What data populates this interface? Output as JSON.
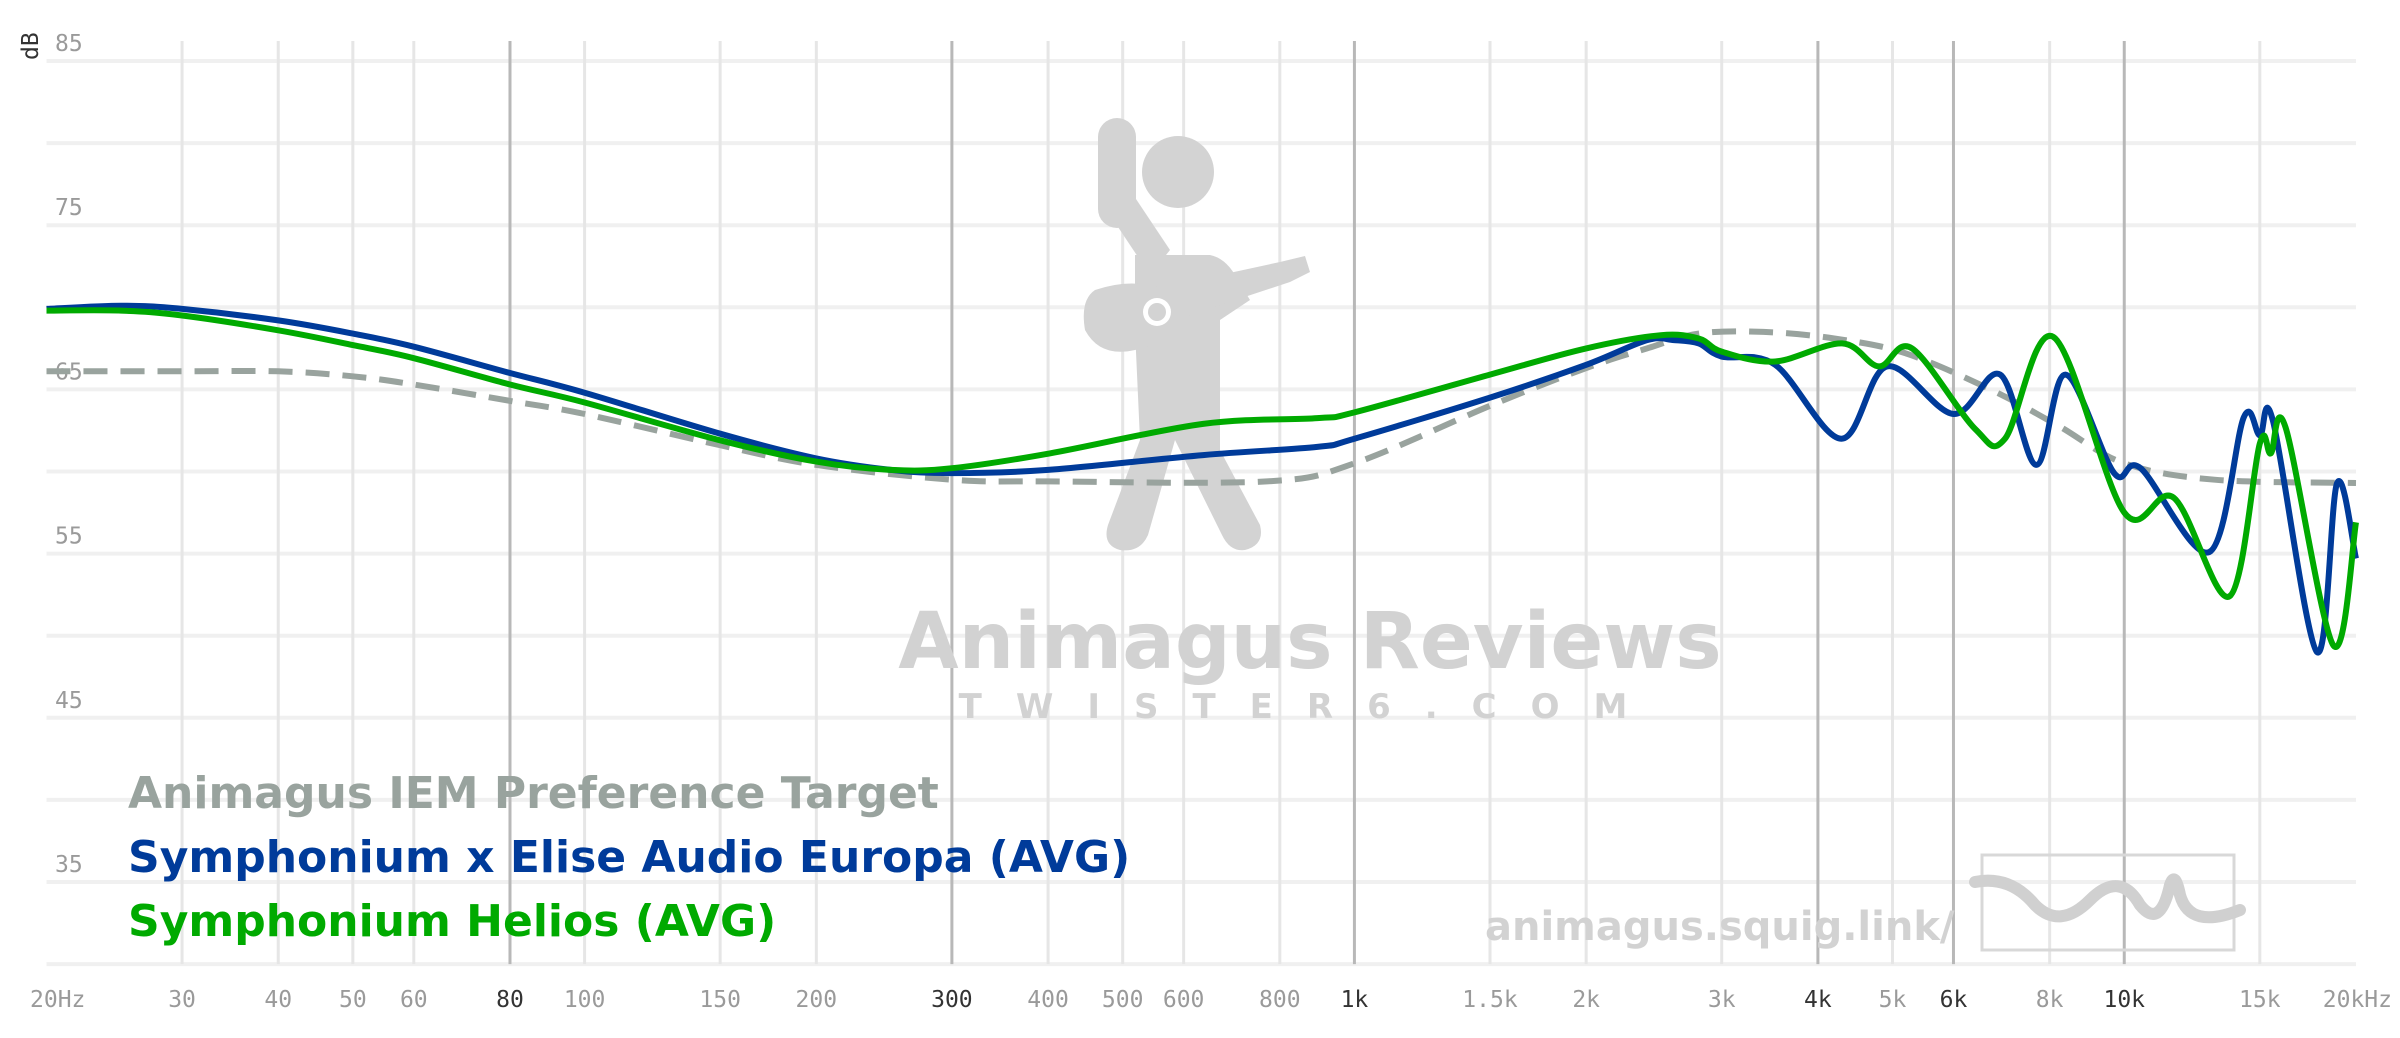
{
  "chart_data": {
    "type": "line",
    "title": "",
    "xlabel": "",
    "ylabel": "dB",
    "xscale": "log",
    "xlim": [
      20,
      20000
    ],
    "ylim": [
      30,
      85
    ],
    "grid": true,
    "legend_position": "bottom-left",
    "x_ticks": [
      {
        "value": 20,
        "label": "20Hz",
        "major": false
      },
      {
        "value": 30,
        "label": "30",
        "major": false
      },
      {
        "value": 40,
        "label": "40",
        "major": false
      },
      {
        "value": 50,
        "label": "50",
        "major": false
      },
      {
        "value": 60,
        "label": "60",
        "major": false
      },
      {
        "value": 80,
        "label": "80",
        "major": true
      },
      {
        "value": 100,
        "label": "100",
        "major": false
      },
      {
        "value": 150,
        "label": "150",
        "major": false
      },
      {
        "value": 200,
        "label": "200",
        "major": false
      },
      {
        "value": 300,
        "label": "300",
        "major": true
      },
      {
        "value": 400,
        "label": "400",
        "major": false
      },
      {
        "value": 500,
        "label": "500",
        "major": false
      },
      {
        "value": 600,
        "label": "600",
        "major": false
      },
      {
        "value": 800,
        "label": "800",
        "major": false
      },
      {
        "value": 1000,
        "label": "1k",
        "major": true
      },
      {
        "value": 1500,
        "label": "1.5k",
        "major": false
      },
      {
        "value": 2000,
        "label": "2k",
        "major": false
      },
      {
        "value": 3000,
        "label": "3k",
        "major": false
      },
      {
        "value": 4000,
        "label": "4k",
        "major": true
      },
      {
        "value": 5000,
        "label": "5k",
        "major": false
      },
      {
        "value": 6000,
        "label": "6k",
        "major": true
      },
      {
        "value": 8000,
        "label": "8k",
        "major": false
      },
      {
        "value": 10000,
        "label": "10k",
        "major": true
      },
      {
        "value": 15000,
        "label": "15k",
        "major": false
      },
      {
        "value": 20000,
        "label": "20kHz",
        "major": false
      }
    ],
    "y_ticks": [
      {
        "value": 85,
        "label": "85"
      },
      {
        "value": 75,
        "label": "75"
      },
      {
        "value": 65,
        "label": "65"
      },
      {
        "value": 55,
        "label": "55"
      },
      {
        "value": 45,
        "label": "45"
      },
      {
        "value": 35,
        "label": "35"
      }
    ],
    "series": [
      {
        "name": "Animagus IEM Preference Target",
        "color": "#99a39e",
        "dashed": true,
        "x": [
          20,
          30,
          40,
          50,
          60,
          80,
          100,
          150,
          200,
          300,
          400,
          770,
          1000,
          1500,
          2000,
          2400,
          2800,
          3400,
          4200,
          5200,
          6700,
          8200,
          10000,
          13100,
          20000
        ],
        "y": [
          66.1,
          66.1,
          66.1,
          65.8,
          65.3,
          64.3,
          63.5,
          61.6,
          60.4,
          59.5,
          59.4,
          59.4,
          60.5,
          64.0,
          66.3,
          67.5,
          68.4,
          68.5,
          68.1,
          67.2,
          65.0,
          62.8,
          60.5,
          59.5,
          59.3
        ]
      },
      {
        "name": "Symphonium x Elise Audio Europa (AVG)",
        "color": "#003b9a",
        "dashed": false,
        "x": [
          20,
          25,
          30,
          40,
          50,
          60,
          80,
          100,
          150,
          200,
          250,
          300,
          400,
          636,
          895,
          1000,
          1500,
          2000,
          2400,
          2600,
          2800,
          3000,
          3520,
          4290,
          4920,
          6000,
          6900,
          7690,
          8390,
          9700,
          10500,
          12900,
          14300,
          15000,
          15600,
          17800,
          18900,
          20000
        ],
        "y": [
          69.9,
          70.1,
          69.9,
          69.2,
          68.4,
          67.6,
          66.0,
          64.8,
          62.3,
          60.8,
          60.1,
          59.9,
          60.1,
          61.0,
          61.5,
          62.0,
          64.5,
          66.5,
          68.0,
          68.0,
          67.8,
          67.0,
          66.5,
          62.0,
          66.4,
          63.5,
          65.9,
          60.4,
          65.9,
          59.9,
          60.2,
          55.1,
          63.3,
          62.2,
          63.1,
          49.0,
          59.3,
          54.7
        ]
      },
      {
        "name": "Symphonium Helios (AVG)",
        "color": "#00aa00",
        "dashed": false,
        "x": [
          20,
          25,
          30,
          40,
          50,
          60,
          80,
          100,
          150,
          200,
          250,
          300,
          402,
          636,
          895,
          1000,
          1500,
          2000,
          2500,
          2800,
          3000,
          3520,
          4300,
          4800,
          5300,
          6400,
          7000,
          8090,
          10000,
          11600,
          13700,
          15000,
          15500,
          16200,
          18700,
          20000
        ],
        "y": [
          69.8,
          69.8,
          69.5,
          68.6,
          67.7,
          66.9,
          65.3,
          64.2,
          61.9,
          60.6,
          60.1,
          60.2,
          61.1,
          62.9,
          63.25,
          63.6,
          65.9,
          67.5,
          68.3,
          68.1,
          67.3,
          66.7,
          67.8,
          66.4,
          67.5,
          62.6,
          62.0,
          68.2,
          57.5,
          58.4,
          52.4,
          61.7,
          61.1,
          62.7,
          49.4,
          56.9
        ]
      }
    ]
  },
  "watermark": {
    "brand": "Animagus Reviews",
    "site": "TWISTER6.COM",
    "url": "animagus.squig.link/"
  }
}
